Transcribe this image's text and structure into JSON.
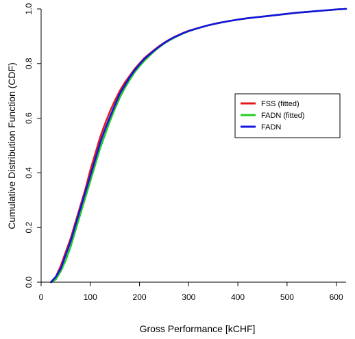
{
  "chart_data": {
    "type": "line",
    "xlabel": "Gross Performance [kCHF]",
    "ylabel": "Cumulative Distribution Function  (CDF)",
    "xlim": [
      0,
      620
    ],
    "ylim": [
      0,
      1.0
    ],
    "x_ticks": [
      0,
      100,
      200,
      300,
      400,
      500,
      600
    ],
    "x_tick_labels": [
      "0",
      "100",
      "200",
      "300",
      "400",
      "500",
      "600"
    ],
    "y_ticks": [
      0,
      0.2,
      0.4,
      0.6,
      0.8,
      1.0
    ],
    "y_tick_labels": [
      "0.0",
      "0.2",
      "0.4",
      "0.6",
      "0.8",
      "1.0"
    ],
    "grid": false,
    "legend_position": "right",
    "series": [
      {
        "name": "FSS (fitted)",
        "color": "#e41a1c",
        "x": [
          20,
          30,
          40,
          50,
          60,
          70,
          80,
          90,
          100,
          110,
          120,
          130,
          140,
          150,
          160,
          170,
          180,
          190,
          200,
          210,
          220,
          230,
          240,
          250,
          260,
          270,
          280,
          290,
          300,
          320,
          340,
          360,
          380,
          400,
          420,
          440,
          460,
          480,
          500,
          520,
          540,
          560,
          580,
          600,
          620
        ],
        "y": [
          0.0,
          0.02,
          0.06,
          0.11,
          0.16,
          0.22,
          0.28,
          0.34,
          0.41,
          0.47,
          0.53,
          0.58,
          0.625,
          0.665,
          0.7,
          0.73,
          0.755,
          0.78,
          0.8,
          0.82,
          0.835,
          0.85,
          0.864,
          0.876,
          0.887,
          0.897,
          0.905,
          0.913,
          0.92,
          0.93,
          0.94,
          0.948,
          0.955,
          0.961,
          0.966,
          0.97,
          0.974,
          0.978,
          0.982,
          0.986,
          0.989,
          0.992,
          0.995,
          0.998,
          1.0
        ]
      },
      {
        "name": "FADN (fitted)",
        "color": "#22cc22",
        "x": [
          20,
          30,
          40,
          50,
          60,
          70,
          80,
          90,
          100,
          110,
          120,
          130,
          140,
          150,
          160,
          170,
          180,
          190,
          200,
          210,
          220,
          230,
          240,
          250,
          260,
          270,
          280,
          290,
          300,
          320,
          340,
          360,
          380,
          400,
          420,
          440,
          460,
          480,
          500,
          520,
          540,
          560,
          580,
          600,
          620
        ],
        "y": [
          0.0,
          0.01,
          0.04,
          0.08,
          0.13,
          0.19,
          0.25,
          0.31,
          0.37,
          0.43,
          0.49,
          0.54,
          0.59,
          0.635,
          0.675,
          0.71,
          0.74,
          0.768,
          0.79,
          0.81,
          0.828,
          0.845,
          0.86,
          0.873,
          0.884,
          0.894,
          0.903,
          0.911,
          0.918,
          0.93,
          0.94,
          0.948,
          0.955,
          0.961,
          0.966,
          0.97,
          0.974,
          0.978,
          0.982,
          0.986,
          0.989,
          0.992,
          0.995,
          0.998,
          1.0
        ]
      },
      {
        "name": "FADN",
        "color": "#1414e0",
        "x": [
          20,
          30,
          40,
          50,
          60,
          70,
          80,
          90,
          100,
          110,
          120,
          130,
          140,
          150,
          160,
          170,
          180,
          190,
          200,
          210,
          220,
          230,
          240,
          250,
          260,
          270,
          280,
          290,
          300,
          320,
          340,
          360,
          380,
          400,
          420,
          440,
          460,
          480,
          500,
          520,
          540,
          560,
          580,
          600,
          620
        ],
        "y": [
          0.0,
          0.02,
          0.05,
          0.1,
          0.15,
          0.21,
          0.27,
          0.33,
          0.39,
          0.45,
          0.51,
          0.56,
          0.605,
          0.648,
          0.69,
          0.72,
          0.75,
          0.775,
          0.797,
          0.817,
          0.833,
          0.848,
          0.862,
          0.875,
          0.886,
          0.896,
          0.904,
          0.912,
          0.919,
          0.93,
          0.94,
          0.948,
          0.955,
          0.961,
          0.966,
          0.97,
          0.974,
          0.978,
          0.982,
          0.986,
          0.989,
          0.992,
          0.995,
          0.998,
          1.0
        ]
      }
    ]
  }
}
